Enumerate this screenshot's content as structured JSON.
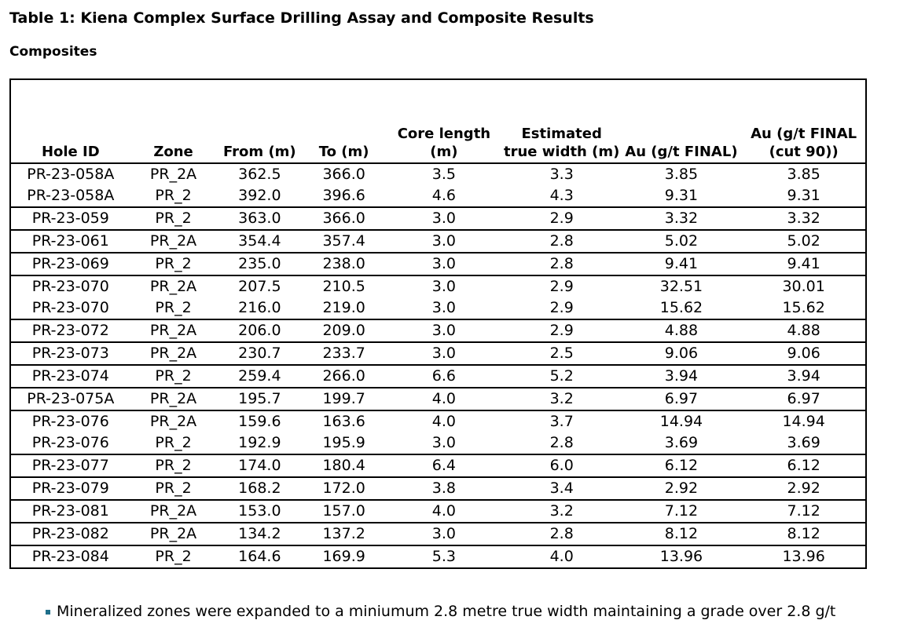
{
  "title": "Table 1: Kiena Complex Surface Drilling Assay and Composite Results",
  "subtitle": "Composites",
  "table": {
    "headers": [
      "Hole ID",
      "Zone",
      "From (m)",
      "To (m)",
      "Core length (m)",
      "Estimated true width (m)",
      "Au (g/t FINAL)",
      "Au (g/t FINAL (cut 90))"
    ],
    "groups": [
      [
        [
          "PR-23-058A",
          "PR_2A",
          "362.5",
          "366.0",
          "3.5",
          "3.3",
          "3.85",
          "3.85"
        ],
        [
          "PR-23-058A",
          "PR_2",
          "392.0",
          "396.6",
          "4.6",
          "4.3",
          "9.31",
          "9.31"
        ]
      ],
      [
        [
          "PR-23-059",
          "PR_2",
          "363.0",
          "366.0",
          "3.0",
          "2.9",
          "3.32",
          "3.32"
        ]
      ],
      [
        [
          "PR-23-061",
          "PR_2A",
          "354.4",
          "357.4",
          "3.0",
          "2.8",
          "5.02",
          "5.02"
        ]
      ],
      [
        [
          "PR-23-069",
          "PR_2",
          "235.0",
          "238.0",
          "3.0",
          "2.8",
          "9.41",
          "9.41"
        ]
      ],
      [
        [
          "PR-23-070",
          "PR_2A",
          "207.5",
          "210.5",
          "3.0",
          "2.9",
          "32.51",
          "30.01"
        ],
        [
          "PR-23-070",
          "PR_2",
          "216.0",
          "219.0",
          "3.0",
          "2.9",
          "15.62",
          "15.62"
        ]
      ],
      [
        [
          "PR-23-072",
          "PR_2A",
          "206.0",
          "209.0",
          "3.0",
          "2.9",
          "4.88",
          "4.88"
        ]
      ],
      [
        [
          "PR-23-073",
          "PR_2A",
          "230.7",
          "233.7",
          "3.0",
          "2.5",
          "9.06",
          "9.06"
        ]
      ],
      [
        [
          "PR-23-074",
          "PR_2",
          "259.4",
          "266.0",
          "6.6",
          "5.2",
          "3.94",
          "3.94"
        ]
      ],
      [
        [
          "PR-23-075A",
          "PR_2A",
          "195.7",
          "199.7",
          "4.0",
          "3.2",
          "6.97",
          "6.97"
        ]
      ],
      [
        [
          "PR-23-076",
          "PR_2A",
          "159.6",
          "163.6",
          "4.0",
          "3.7",
          "14.94",
          "14.94"
        ],
        [
          "PR-23-076",
          "PR_2",
          "192.9",
          "195.9",
          "3.0",
          "2.8",
          "3.69",
          "3.69"
        ]
      ],
      [
        [
          "PR-23-077",
          "PR_2",
          "174.0",
          "180.4",
          "6.4",
          "6.0",
          "6.12",
          "6.12"
        ]
      ],
      [
        [
          "PR-23-079",
          "PR_2",
          "168.2",
          "172.0",
          "3.8",
          "3.4",
          "2.92",
          "2.92"
        ]
      ],
      [
        [
          "PR-23-081",
          "PR_2A",
          "153.0",
          "157.0",
          "4.0",
          "3.2",
          "7.12",
          "7.12"
        ]
      ],
      [
        [
          "PR-23-082",
          "PR_2A",
          "134.2",
          "137.2",
          "3.0",
          "2.8",
          "8.12",
          "8.12"
        ]
      ],
      [
        [
          "PR-23-084",
          "PR_2",
          "164.6",
          "169.9",
          "5.3",
          "4.0",
          "13.96",
          "13.96"
        ]
      ]
    ]
  },
  "note": "Mineralized zones were expanded to a miniumum 2.8 metre true width maintaining a grade over 2.8 g/t"
}
